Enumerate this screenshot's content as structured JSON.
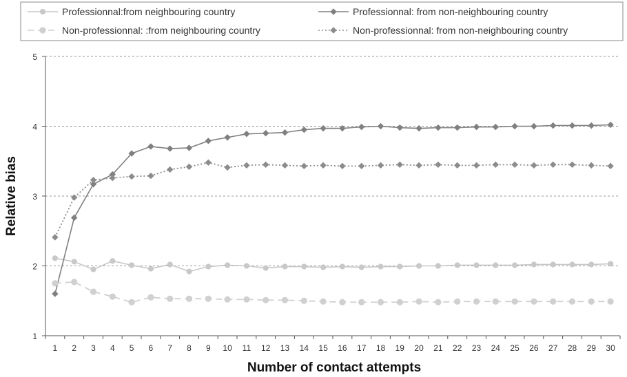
{
  "chart_data": {
    "type": "line",
    "xlabel": "Number of contact attempts",
    "ylabel": "Relative bias",
    "x": [
      1,
      2,
      3,
      4,
      5,
      6,
      7,
      8,
      9,
      10,
      11,
      12,
      13,
      14,
      15,
      16,
      17,
      18,
      19,
      20,
      21,
      22,
      23,
      24,
      25,
      26,
      27,
      28,
      29,
      30
    ],
    "ylim": [
      1,
      5
    ],
    "yticks": [
      1,
      2,
      3,
      4,
      5
    ],
    "grid": "horizontal dashed",
    "legend_position": "top",
    "series": [
      {
        "name": "Professionnal:from neighbouring country",
        "style": "solid",
        "marker": "circle",
        "color": "#c8c8c8",
        "values": [
          2.11,
          2.06,
          1.95,
          2.07,
          2.01,
          1.96,
          2.02,
          1.92,
          1.99,
          2.01,
          2.0,
          1.97,
          1.99,
          1.99,
          1.98,
          1.99,
          1.98,
          1.99,
          1.99,
          2.0,
          2.0,
          2.01,
          2.01,
          2.01,
          2.01,
          2.02,
          2.02,
          2.02,
          2.02,
          2.03
        ]
      },
      {
        "name": "Professionnal: from non-neighbouring country",
        "style": "solid",
        "marker": "diamond",
        "color": "#808080",
        "values": [
          1.6,
          2.69,
          3.17,
          3.31,
          3.61,
          3.71,
          3.68,
          3.69,
          3.79,
          3.84,
          3.89,
          3.9,
          3.91,
          3.95,
          3.97,
          3.97,
          3.99,
          4.0,
          3.98,
          3.97,
          3.98,
          3.98,
          3.99,
          3.99,
          4.0,
          4.0,
          4.01,
          4.01,
          4.01,
          4.02
        ]
      },
      {
        "name": "Non-professionnal: :from neighbouring country",
        "style": "dashed",
        "marker": "circle",
        "color": "#d0d0d0",
        "values": [
          1.75,
          1.77,
          1.63,
          1.56,
          1.48,
          1.55,
          1.53,
          1.53,
          1.53,
          1.52,
          1.52,
          1.51,
          1.51,
          1.5,
          1.49,
          1.48,
          1.48,
          1.48,
          1.48,
          1.49,
          1.48,
          1.49,
          1.49,
          1.49,
          1.49,
          1.49,
          1.49,
          1.49,
          1.49,
          1.49
        ]
      },
      {
        "name": "Non-professionnal: from non-neighbouring country",
        "style": "dotted",
        "marker": "diamond",
        "color": "#8c8c8c",
        "values": [
          2.41,
          2.98,
          3.23,
          3.26,
          3.28,
          3.29,
          3.38,
          3.42,
          3.48,
          3.41,
          3.44,
          3.45,
          3.44,
          3.43,
          3.44,
          3.43,
          3.43,
          3.44,
          3.45,
          3.44,
          3.45,
          3.44,
          3.44,
          3.45,
          3.45,
          3.44,
          3.45,
          3.45,
          3.44,
          3.43
        ]
      }
    ]
  }
}
